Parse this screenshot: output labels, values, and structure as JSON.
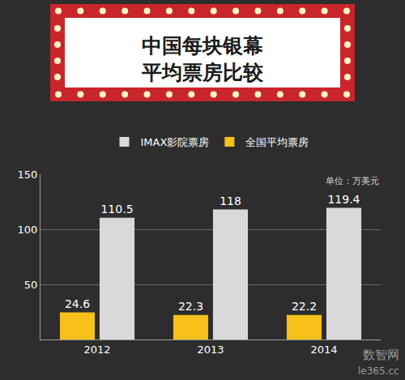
{
  "chart_data": {
    "type": "bar",
    "title": "中国每块银幕\n平均票房比较",
    "categories": [
      "2012",
      "2013",
      "2014"
    ],
    "series": [
      {
        "name": "IMAX影院票房",
        "color": "#d9d9d9",
        "values": [
          110.5,
          118,
          119.4
        ]
      },
      {
        "name": "全国平均票房",
        "color": "#f5c11a",
        "values": [
          24.6,
          22.3,
          22.2
        ]
      }
    ],
    "ylim": [
      0,
      150
    ],
    "yticks": [
      50,
      100,
      150
    ],
    "grid": true,
    "legend": "top",
    "data_labels": true,
    "annotations": [
      "单位：万美元",
      "数智网",
      "le365.cc"
    ]
  }
}
